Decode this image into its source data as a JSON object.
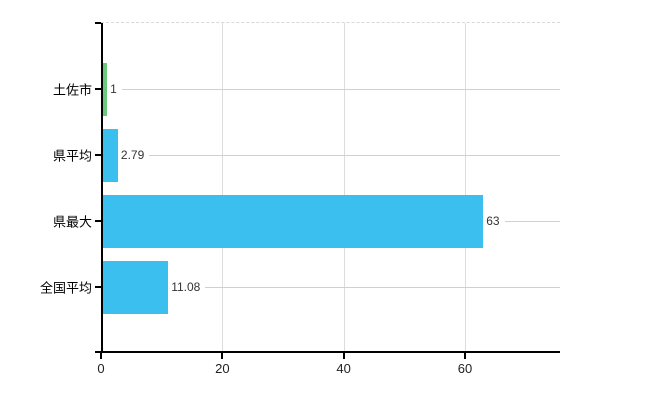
{
  "chart_data": {
    "type": "bar",
    "orientation": "horizontal",
    "title": "",
    "xlabel": "",
    "ylabel": "",
    "categories": [
      "土佐市",
      "県平均",
      "県最大",
      "全国平均"
    ],
    "values": [
      1,
      2.79,
      63,
      11.08
    ],
    "value_labels": [
      "1",
      "2.79",
      "63",
      "11.08"
    ],
    "bar_colors": [
      "#6cc97c",
      "#3bbfee",
      "#3bbfee",
      "#3bbfee"
    ],
    "x_ticks": [
      0,
      20,
      40,
      60
    ],
    "x_tick_labels": [
      "0",
      "20",
      "40",
      "60"
    ],
    "xlim": [
      0,
      75.66
    ],
    "grid": true,
    "legend": false,
    "colors": {
      "axis": "#000000",
      "vertical_gridline": "#dcdcdc",
      "row_guide_line": "#d0d0d0",
      "plot_top_dashed_border": "#d8d8d8",
      "tick_label_text": "#222222",
      "value_label_text": "#333333",
      "category_label_text": "#000000",
      "background": "#ffffff"
    }
  }
}
